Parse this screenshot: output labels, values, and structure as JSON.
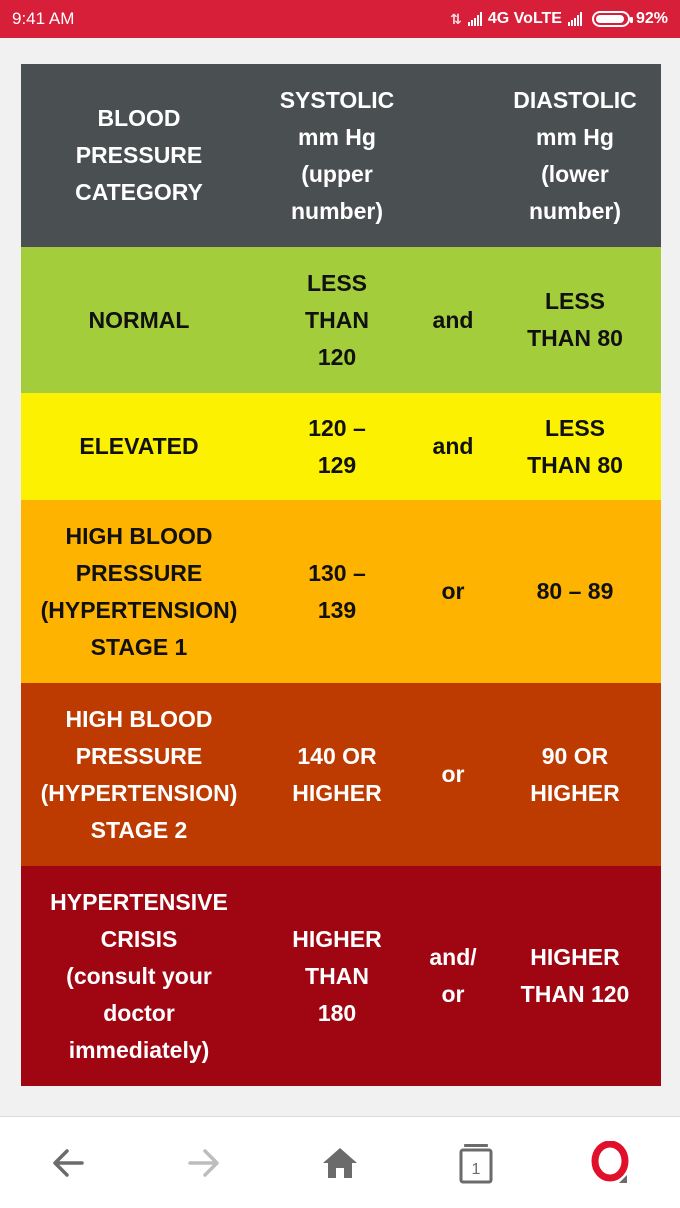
{
  "status_bar": {
    "time": "9:41 AM",
    "network": "4G VoLTE",
    "battery": "92%"
  },
  "table": {
    "header": {
      "category": "BLOOD\nPRESSURE\nCATEGORY",
      "systolic": "SYSTOLIC\nmm Hg\n(upper\nnumber)",
      "diastolic": "DIASTOLIC\nmm Hg\n(lower\nnumber)"
    },
    "rows": [
      {
        "category": "NORMAL",
        "systolic": "LESS\nTHAN\n120",
        "connector": "and",
        "diastolic": "LESS\nTHAN 80",
        "color": "#a3cd3b"
      },
      {
        "category": "ELEVATED",
        "systolic": "120 –\n129",
        "connector": "and",
        "diastolic": "LESS\nTHAN 80",
        "color": "#fbf100"
      },
      {
        "category": "HIGH BLOOD\nPRESSURE\n(HYPERTENSION)\nSTAGE  1",
        "systolic": "130 –\n139",
        "connector": "or",
        "diastolic": "80 – 89",
        "color": "#fdb300"
      },
      {
        "category": "HIGH BLOOD\nPRESSURE\n(HYPERTENSION)\nSTAGE  2",
        "systolic": "140 OR\nHIGHER",
        "connector": "or",
        "diastolic": "90 OR\nHIGHER",
        "color": "#bd3a00"
      },
      {
        "category": "HYPERTENSIVE\nCRISIS\n(consult  your\ndoctor\nimmediately)",
        "systolic": "HIGHER\nTHAN\n180",
        "connector": "and/\nor",
        "diastolic": "HIGHER\nTHAN 120",
        "color": "#a00512"
      }
    ]
  },
  "nav": {
    "back_icon": "arrow-left-icon",
    "forward_icon": "arrow-right-icon",
    "home_icon": "home-icon",
    "tabs_count": "1",
    "opera_icon": "opera-logo-icon"
  }
}
